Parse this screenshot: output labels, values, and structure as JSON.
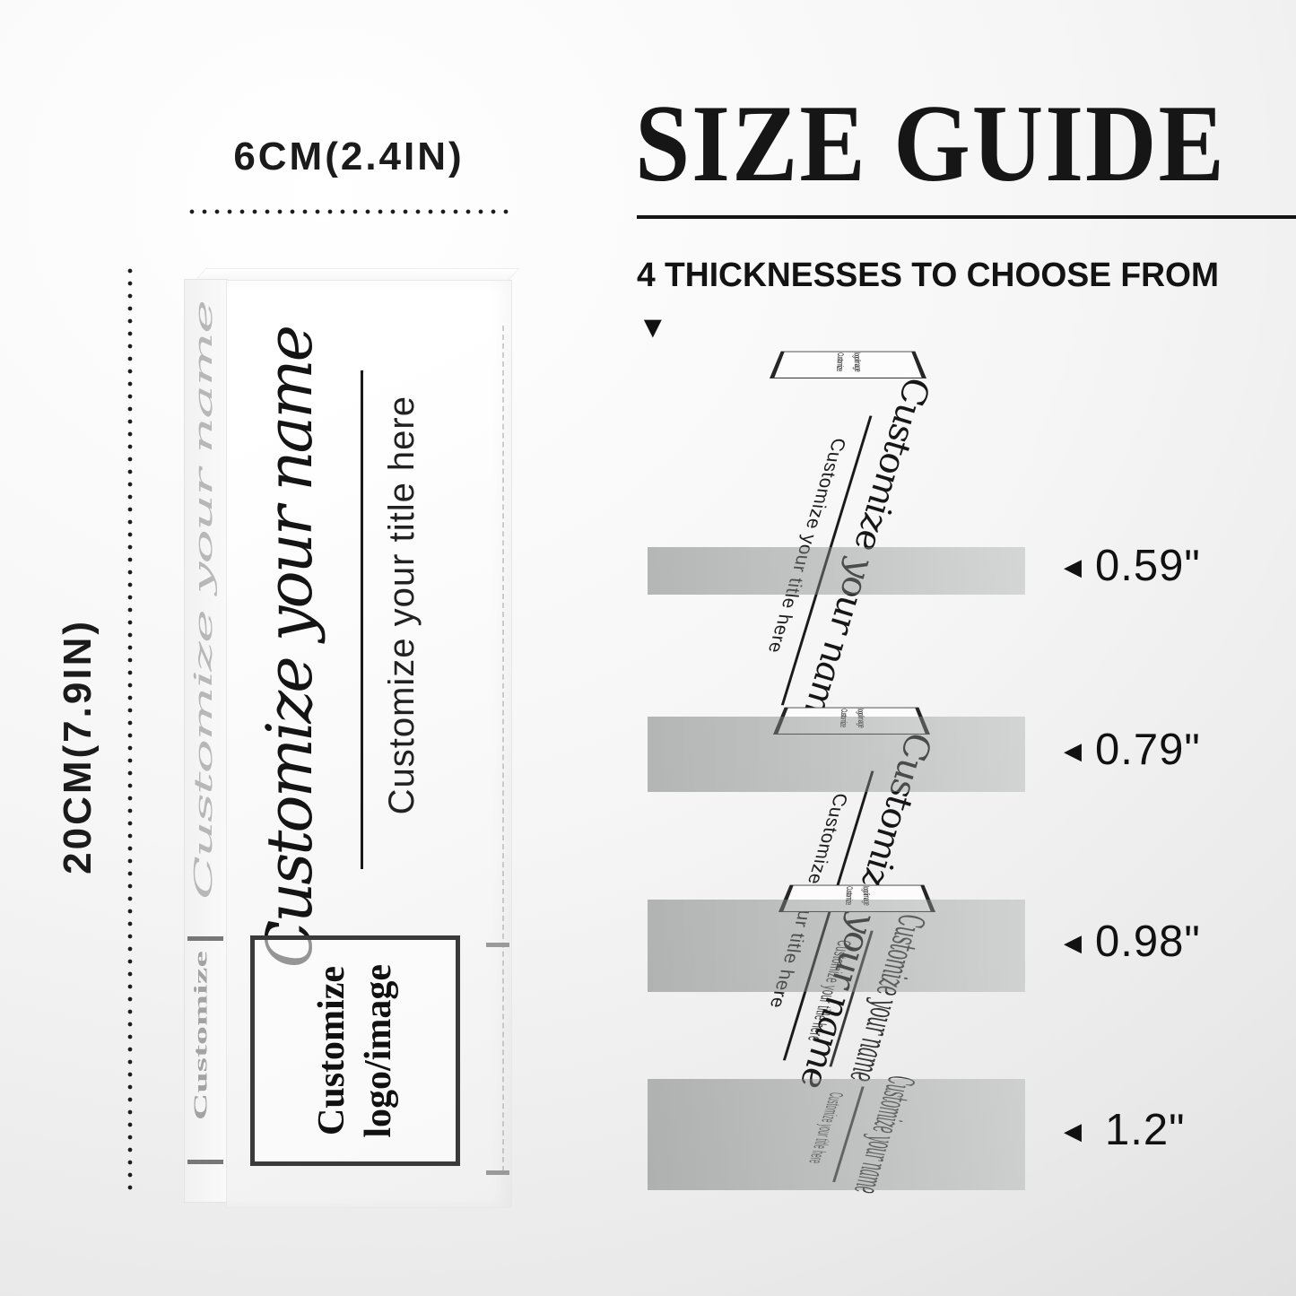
{
  "product": {
    "name_placeholder": "Customize your name",
    "title_placeholder": "Customize your title here",
    "logo_placeholder_line1": "Customize",
    "logo_placeholder_line2": "logo/image",
    "width_label": "6CM(2.4IN)",
    "height_label": "20CM(7.9IN)"
  },
  "size_guide": {
    "title": "SIZE GUIDE",
    "subtitle": "4 THICKNESSES TO CHOOSE FROM",
    "pointer_icon": "▼",
    "arrow_icon": "◀",
    "thicknesses": [
      {
        "label": "0.59\""
      },
      {
        "label": "0.79\""
      },
      {
        "label": "0.98\""
      },
      {
        "label": "1.2\""
      }
    ]
  },
  "colors": {
    "text": "#151515",
    "band_dark": "#787979",
    "band_light": "#a0a3a3",
    "logo_box_border": "#3a3a3a"
  }
}
